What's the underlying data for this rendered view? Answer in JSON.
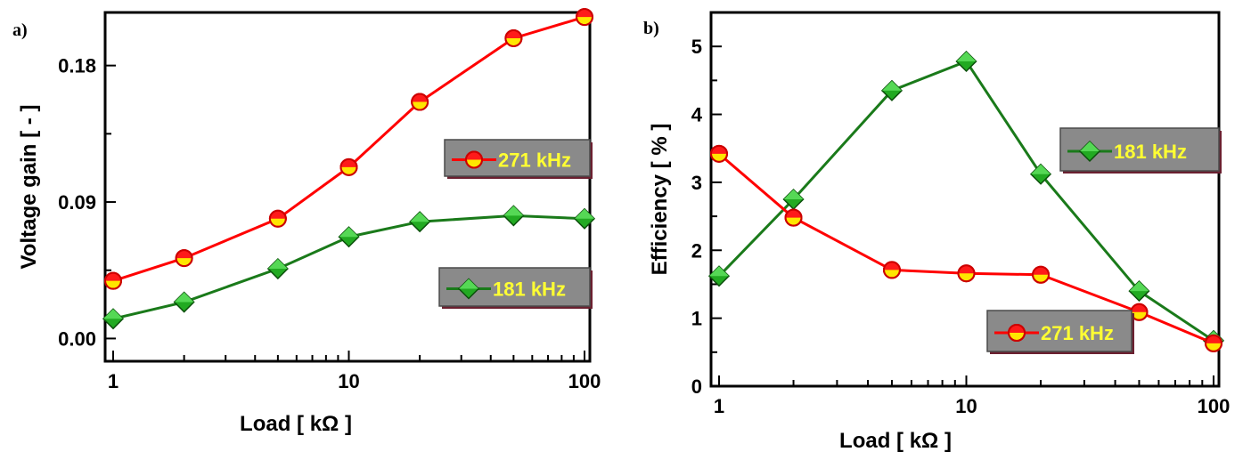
{
  "chart_data": [
    {
      "panel_label": "a)",
      "type": "line",
      "xscale": "log",
      "xlim": [
        1,
        100
      ],
      "ylim": [
        -0.015,
        0.215
      ],
      "xlabel": "Load  [ kΩ ]",
      "ylabel": "Voltage gain [ - ]",
      "x_tick_labels": [
        "1",
        "10",
        "100"
      ],
      "y_tick_labels": [
        "0.00",
        "0.09",
        "0.18"
      ],
      "x": [
        1,
        2,
        5,
        10,
        20,
        50,
        100
      ],
      "series": [
        {
          "name": "271 kHz",
          "marker": "half-circle",
          "color": "#ff0000",
          "values": [
            0.038,
            0.053,
            0.079,
            0.113,
            0.156,
            0.198,
            0.212
          ]
        },
        {
          "name": "181 kHz",
          "marker": "diamond",
          "color": "#1a7a1a",
          "values": [
            0.013,
            0.024,
            0.046,
            0.067,
            0.077,
            0.081,
            0.079
          ]
        }
      ],
      "legend_placement": [
        "right-middle",
        "right-lower"
      ]
    },
    {
      "panel_label": "b)",
      "type": "line",
      "xscale": "log",
      "xlim": [
        1,
        100
      ],
      "ylim": [
        0,
        5.5
      ],
      "xlabel": "Load  [ kΩ ]",
      "ylabel": "Efficiency [ % ]",
      "x_tick_labels": [
        "1",
        "10",
        "100"
      ],
      "y_tick_labels": [
        "0",
        "1",
        "2",
        "3",
        "4",
        "5"
      ],
      "x": [
        1,
        2,
        5,
        10,
        20,
        50,
        100
      ],
      "series": [
        {
          "name": "181 kHz",
          "marker": "diamond",
          "color": "#1a7a1a",
          "values": [
            1.62,
            2.75,
            4.35,
            4.78,
            3.12,
            1.4,
            0.67
          ]
        },
        {
          "name": "271 kHz",
          "marker": "half-circle",
          "color": "#ff0000",
          "values": [
            3.42,
            2.48,
            1.71,
            1.66,
            1.64,
            1.09,
            0.63
          ]
        }
      ],
      "legend_placement": [
        "right-upper",
        "right-lower"
      ]
    }
  ]
}
